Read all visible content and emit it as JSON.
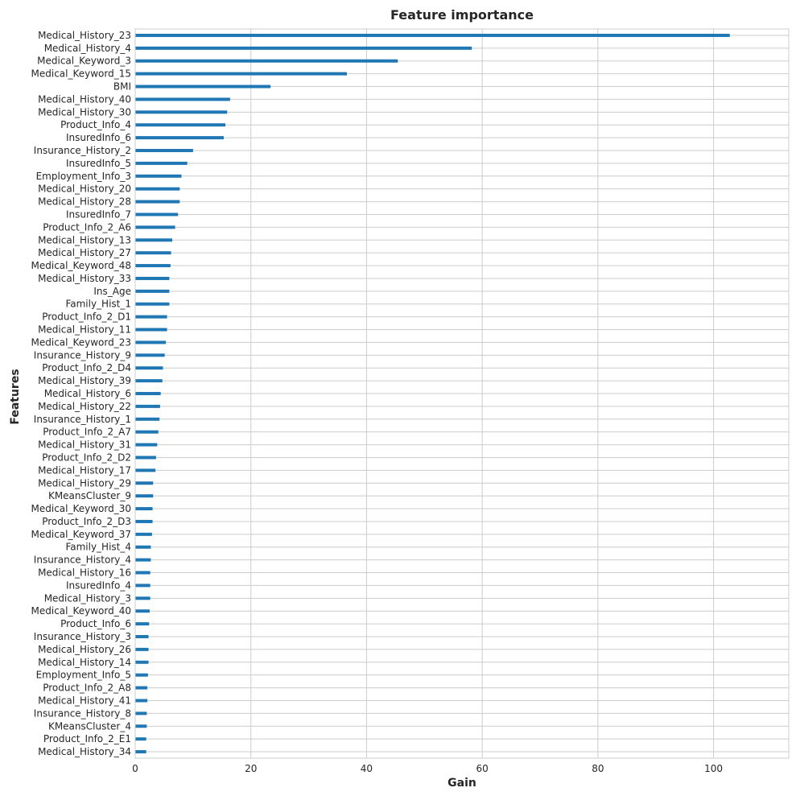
{
  "chart_data": {
    "type": "bar",
    "orientation": "horizontal",
    "title": "Feature importance",
    "xlabel": "Gain",
    "ylabel": "Features",
    "xlim": [
      0,
      113
    ],
    "xticks": [
      0,
      20,
      40,
      60,
      80,
      100
    ],
    "grid": true,
    "bar_color": "#1f77b4",
    "categories": [
      "Medical_History_23",
      "Medical_History_4",
      "Medical_Keyword_3",
      "Medical_Keyword_15",
      "BMI",
      "Medical_History_40",
      "Medical_History_30",
      "Product_Info_4",
      "InsuredInfo_6",
      "Insurance_History_2",
      "InsuredInfo_5",
      "Employment_Info_3",
      "Medical_History_20",
      "Medical_History_28",
      "InsuredInfo_7",
      "Product_Info_2_A6",
      "Medical_History_13",
      "Medical_History_27",
      "Medical_Keyword_48",
      "Medical_History_33",
      "Ins_Age",
      "Family_Hist_1",
      "Product_Info_2_D1",
      "Medical_History_11",
      "Medical_Keyword_23",
      "Insurance_History_9",
      "Product_Info_2_D4",
      "Medical_History_39",
      "Medical_History_6",
      "Medical_History_22",
      "Insurance_History_1",
      "Product_Info_2_A7",
      "Medical_History_31",
      "Product_Info_2_D2",
      "Medical_History_17",
      "Medical_History_29",
      "KMeansCluster_9",
      "Medical_Keyword_30",
      "Product_Info_2_D3",
      "Medical_Keyword_37",
      "Family_Hist_4",
      "Insurance_History_4",
      "Medical_History_16",
      "InsuredInfo_4",
      "Medical_History_3",
      "Medical_Keyword_40",
      "Product_Info_6",
      "Insurance_History_3",
      "Medical_History_26",
      "Medical_History_14",
      "Employment_Info_5",
      "Product_Info_2_A8",
      "Medical_History_41",
      "Insurance_History_8",
      "KMeansCluster_4",
      "Product_Info_2_E1",
      "Medical_History_34"
    ],
    "values": [
      102.8,
      58.2,
      45.4,
      36.6,
      23.4,
      16.4,
      15.9,
      15.6,
      15.3,
      10.0,
      9.0,
      8.0,
      7.7,
      7.7,
      7.4,
      6.9,
      6.4,
      6.2,
      6.1,
      5.9,
      5.9,
      5.9,
      5.5,
      5.5,
      5.3,
      5.1,
      4.8,
      4.7,
      4.4,
      4.3,
      4.2,
      4.0,
      3.8,
      3.6,
      3.5,
      3.1,
      3.1,
      3.0,
      3.0,
      2.9,
      2.7,
      2.7,
      2.6,
      2.6,
      2.6,
      2.5,
      2.4,
      2.3,
      2.3,
      2.3,
      2.2,
      2.1,
      2.1,
      2.0,
      2.0,
      1.9,
      1.9
    ]
  }
}
